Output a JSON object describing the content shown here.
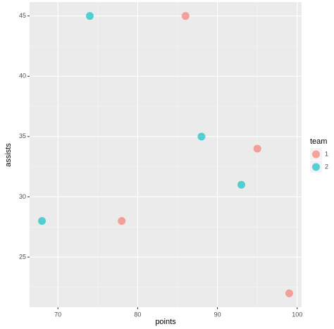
{
  "chart_data": {
    "type": "scatter",
    "x_label": "points",
    "y_label": "assists",
    "legend_title": "team",
    "legend_position": "right",
    "series": [
      {
        "name": "1",
        "color": "#F8766D",
        "x": [
          86,
          95,
          78,
          99
        ],
        "values": [
          45,
          34,
          28,
          22
        ]
      },
      {
        "name": "2",
        "color": "#00BFC4",
        "x": [
          74,
          88,
          93,
          68
        ],
        "values": [
          45,
          35,
          31,
          28
        ]
      }
    ],
    "xlim": [
      66.45,
      100.55
    ],
    "xticks": [
      70,
      80,
      90,
      100
    ],
    "ylim": [
      20.85,
      46.15
    ],
    "yticks": [
      25,
      30,
      35,
      40,
      45
    ],
    "grid": true
  }
}
